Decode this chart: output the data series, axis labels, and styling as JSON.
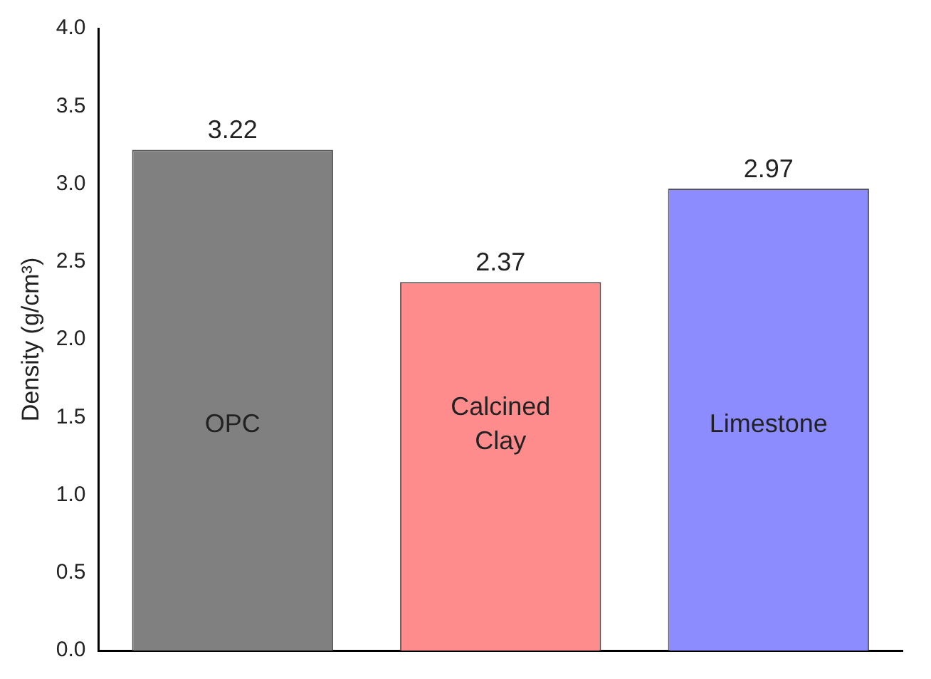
{
  "chart_data": {
    "type": "bar",
    "ylabel": "Density (g/cm³)",
    "categories": [
      "OPC",
      "Calcined Clay",
      "Limestone"
    ],
    "values": [
      3.22,
      2.37,
      2.97
    ],
    "colors": [
      "#808080",
      "#ff8c8c",
      "#8c8cff"
    ],
    "data_labels": true,
    "ylim": [
      0,
      4
    ],
    "yticks": [
      {
        "value": 0,
        "label": "0.0"
      },
      {
        "value": 0.5,
        "label": "0.5"
      },
      {
        "value": 1,
        "label": "1.0"
      },
      {
        "value": 1.5,
        "label": "1.5"
      },
      {
        "value": 2,
        "label": "2.0"
      },
      {
        "value": 2.5,
        "label": "2.5"
      },
      {
        "value": 3,
        "label": "3.0"
      },
      {
        "value": 3.5,
        "label": "3.5"
      },
      {
        "value": 4,
        "label": "4.0"
      }
    ],
    "grid": false,
    "legend": false
  }
}
